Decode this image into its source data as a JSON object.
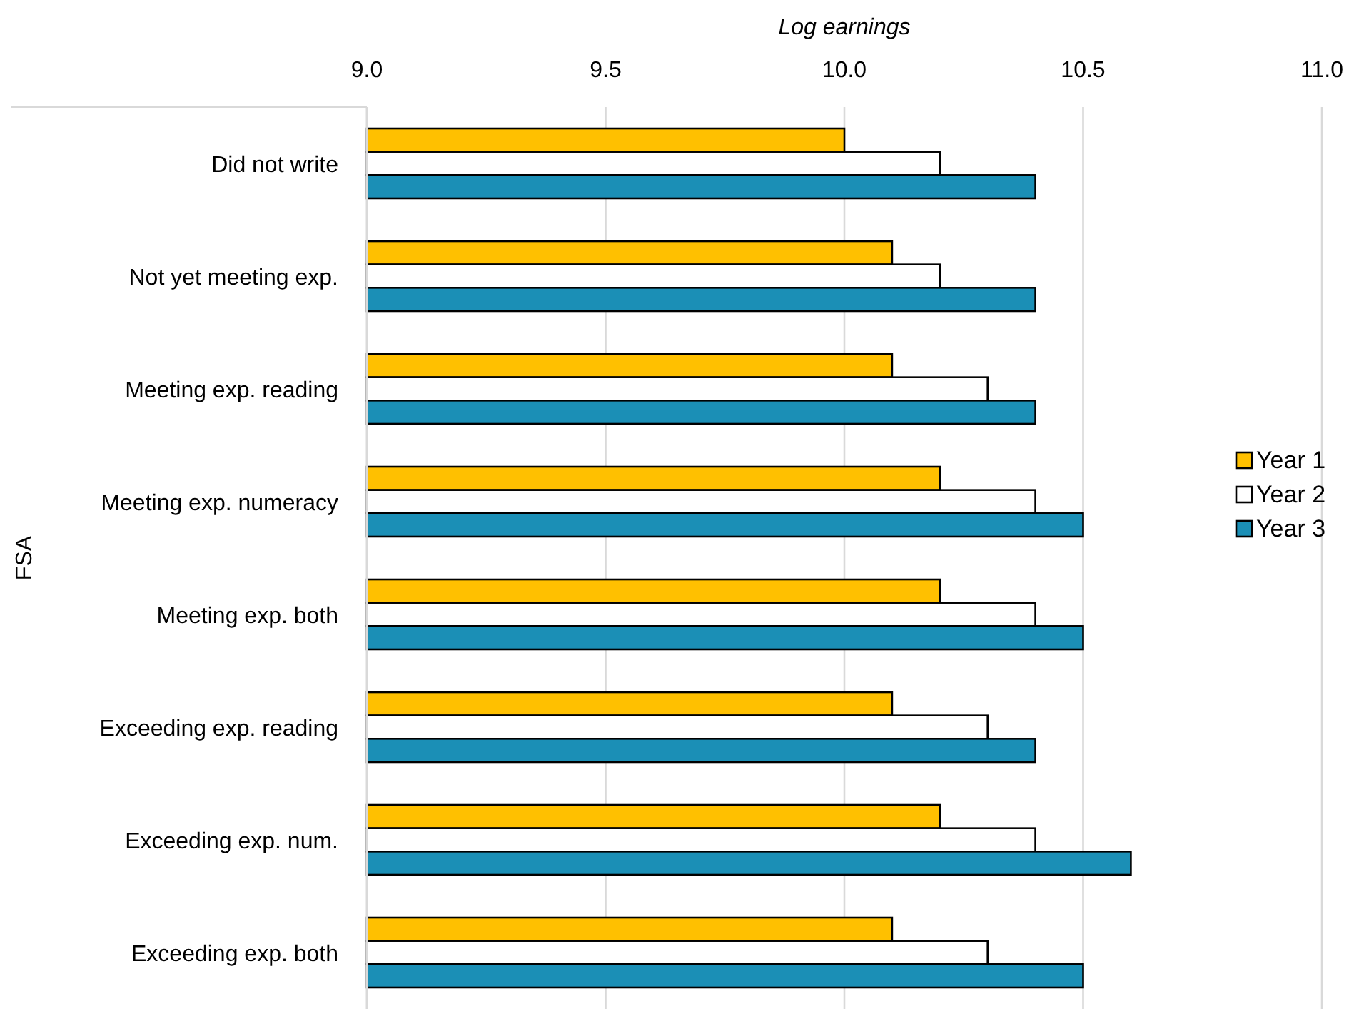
{
  "chart_data": {
    "type": "bar",
    "orientation": "horizontal",
    "xlabel": "Log earnings",
    "ylabel": "FSA",
    "categories": [
      "Did not write",
      "Not yet meeting exp.",
      "Meeting exp. reading",
      "Meeting exp. numeracy",
      "Meeting exp. both",
      "Exceeding exp. reading",
      "Exceeding exp. num.",
      "Exceeding exp. both"
    ],
    "series": [
      {
        "name": "Year 1",
        "color": "#ffc000",
        "values": [
          10.0,
          10.1,
          10.1,
          10.2,
          10.2,
          10.1,
          10.2,
          10.1
        ]
      },
      {
        "name": "Year 2",
        "color": "#ffffff",
        "values": [
          10.2,
          10.2,
          10.3,
          10.4,
          10.4,
          10.3,
          10.4,
          10.3
        ]
      },
      {
        "name": "Year 3",
        "color": "#1b8fb6",
        "values": [
          10.4,
          10.4,
          10.4,
          10.5,
          10.5,
          10.4,
          10.6,
          10.5
        ]
      }
    ],
    "xlim": [
      9.0,
      11.0
    ],
    "xticks": [
      {
        "value": 9,
        "label": "9.0"
      },
      {
        "value": 9.5,
        "label": "9.5"
      },
      {
        "value": 10,
        "label": "10.0"
      },
      {
        "value": 10.5,
        "label": "10.5"
      },
      {
        "value": 11,
        "label": "11.0"
      }
    ],
    "grid": "x",
    "legend": "right"
  }
}
